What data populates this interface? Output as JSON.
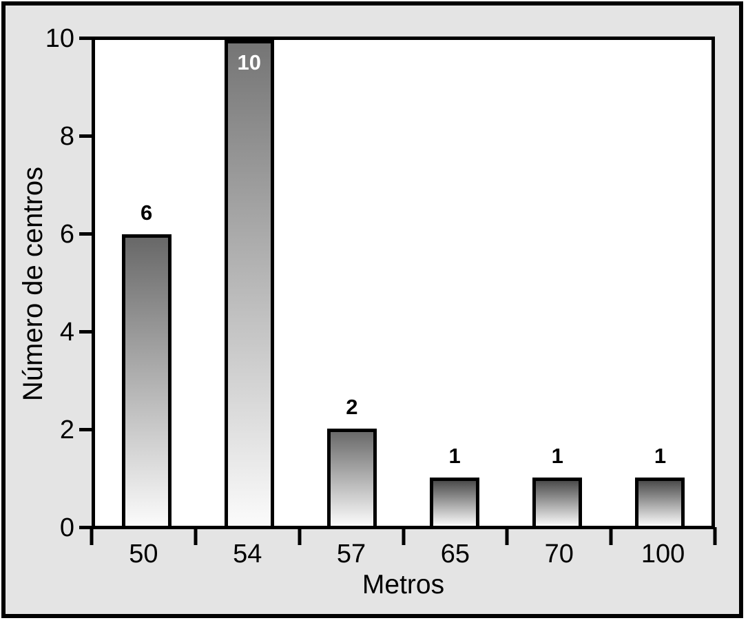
{
  "chart_data": {
    "type": "bar",
    "categories": [
      "50",
      "54",
      "57",
      "65",
      "70",
      "100"
    ],
    "values": [
      6,
      10,
      2,
      1,
      1,
      1
    ],
    "bar_labels": [
      "6",
      "10",
      "2",
      "1",
      "1",
      "1"
    ],
    "label_inside": [
      false,
      true,
      false,
      false,
      false,
      false
    ],
    "title": "",
    "xlabel": "Metros",
    "ylabel": "Número de centros",
    "yticks": [
      0,
      2,
      4,
      6,
      8,
      10
    ],
    "ylim": [
      0,
      10
    ],
    "grid": false,
    "legend": false
  },
  "style": {
    "frame_background": "#e4e4e4",
    "plot_background": "#ffffff",
    "axis_color": "#000000",
    "bar_border_color": "#000000",
    "bar_top_colors": [
      "#686868",
      "#757575",
      "#6a6a6a",
      "#4c4c4c",
      "#4c4c4c",
      "#4c4c4c"
    ],
    "bar_bottom_color": "#fbfbfb",
    "value_label_color": "#000000",
    "inside_value_label_color": "#ffffff"
  }
}
